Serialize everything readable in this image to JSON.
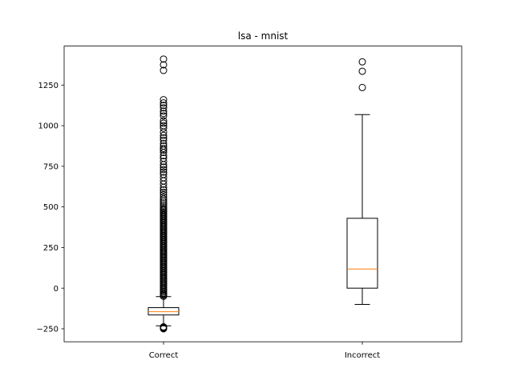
{
  "chart_data": {
    "type": "boxplot",
    "title": "lsa - mnist",
    "xlabel": "",
    "ylabel": "",
    "ylim": [
      -330,
      1490
    ],
    "yticks": [
      -250,
      0,
      250,
      500,
      750,
      1000,
      1250
    ],
    "grid": false,
    "colors": {
      "median": "#ff7f0e",
      "box": "#000000"
    },
    "boxes": [
      {
        "category": "Correct",
        "whisker_low": -232,
        "q1": -165,
        "median": -145,
        "q3": -120,
        "whisker_high": -52,
        "fliers": [
          -242,
          -246,
          -250,
          -238,
          -50,
          -44,
          -38,
          -30,
          -22,
          -14,
          -6,
          2,
          10,
          18,
          26,
          34,
          42,
          50,
          58,
          66,
          74,
          82,
          90,
          98,
          106,
          114,
          122,
          130,
          138,
          146,
          154,
          162,
          170,
          178,
          186,
          194,
          202,
          210,
          218,
          226,
          234,
          242,
          250,
          258,
          266,
          274,
          282,
          290,
          298,
          306,
          314,
          322,
          330,
          338,
          346,
          354,
          362,
          370,
          378,
          386,
          394,
          402,
          410,
          418,
          426,
          434,
          442,
          450,
          458,
          466,
          474,
          482,
          490,
          500,
          512,
          524,
          536,
          548,
          560,
          575,
          590,
          605,
          620,
          640,
          660,
          680,
          700,
          715,
          730,
          745,
          760,
          780,
          800,
          815,
          835,
          850,
          860,
          875,
          890,
          910,
          925,
          940,
          960,
          985,
          1000,
          1015,
          1030,
          1060,
          1075,
          1090,
          1110,
          1125,
          1140,
          1160,
          1340,
          1375,
          1410
        ]
      },
      {
        "category": "Incorrect",
        "whisker_low": -100,
        "q1": 0,
        "median": 118,
        "q3": 430,
        "whisker_high": 1068,
        "fliers": [
          1235,
          1335,
          1393
        ]
      }
    ]
  }
}
